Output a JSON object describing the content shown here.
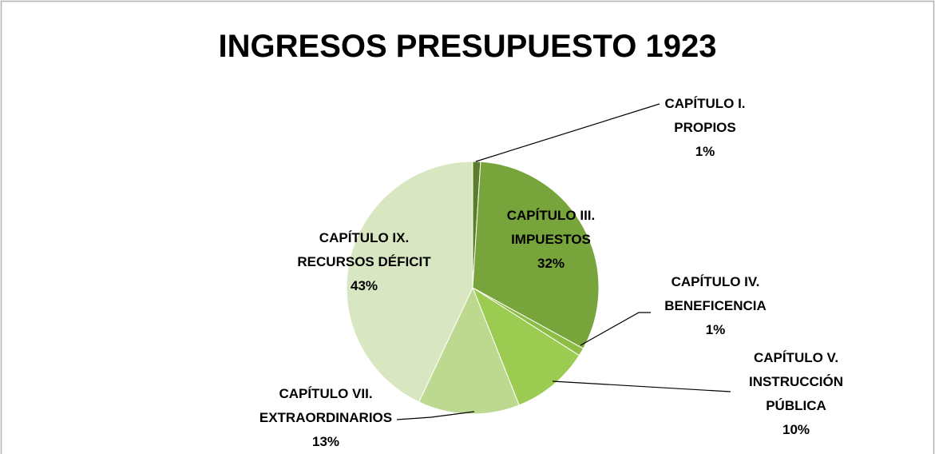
{
  "chart_data": {
    "type": "pie",
    "title": "INGRESOS PRESUPUESTO 1923",
    "categories": [
      "CAPÍTULO I. PROPIOS",
      "CAPÍTULO III. IMPUESTOS",
      "CAPÍTULO IV. BENEFICENCIA",
      "CAPÍTULO V. INSTRUCCIÓN PÚBLICA",
      "CAPÍTULO VII. EXTRAORDINARIOS",
      "CAPÍTULO IX. RECURSOS DÉFICIT"
    ],
    "values": [
      1,
      32,
      1,
      10,
      13,
      43
    ],
    "value_labels": [
      "1%",
      "32%",
      "1%",
      "10%",
      "13%",
      "43%"
    ],
    "colors": [
      "#5b7d2b",
      "#78a53b",
      "#8dbd45",
      "#9ccb52",
      "#bdd990",
      "#d8e7c2"
    ]
  }
}
